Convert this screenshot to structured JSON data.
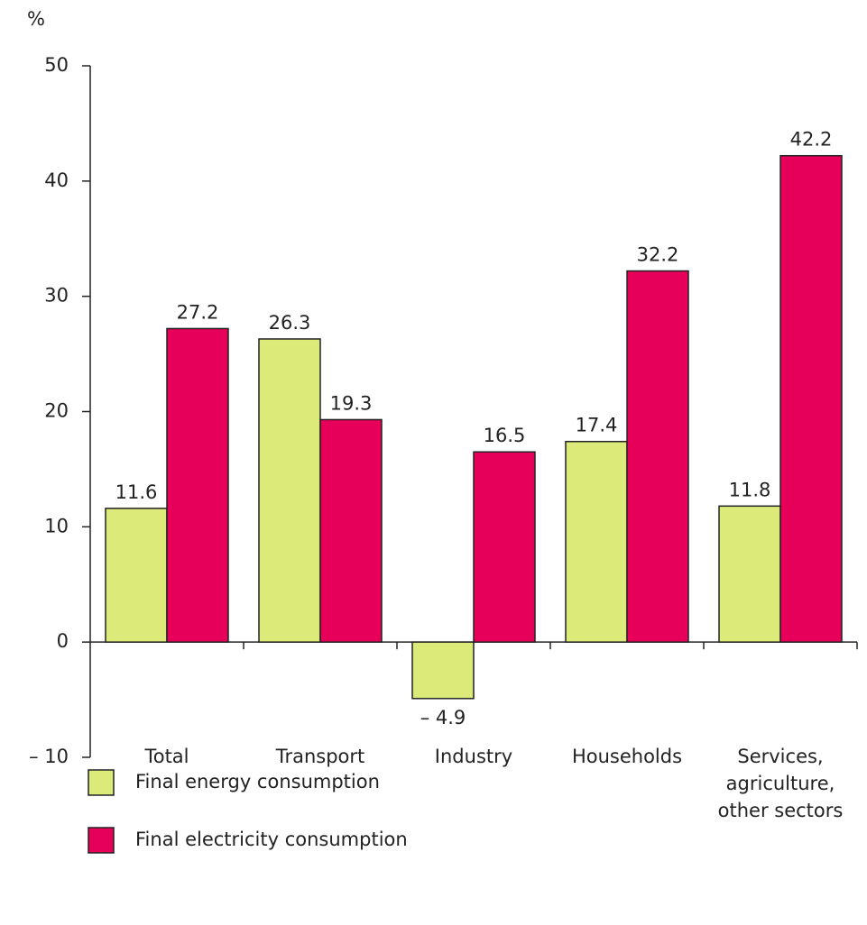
{
  "chart_data": {
    "type": "bar",
    "y_label": "%",
    "categories": [
      "Total",
      "Transport",
      "Industry",
      "Households",
      "Services,\nagriculture,\nother sectors"
    ],
    "series": [
      {
        "name": "Final energy consumption",
        "color": "#dcea7a",
        "values": [
          11.6,
          26.3,
          -4.9,
          17.4,
          11.8
        ],
        "value_labels": [
          "11.6",
          "26.3",
          "– 4.9",
          "17.4",
          "11.8"
        ]
      },
      {
        "name": "Final electricity consumption",
        "color": "#e6005a",
        "values": [
          27.2,
          19.3,
          16.5,
          32.2,
          42.2
        ]
      }
    ],
    "ylim": [
      -10,
      50
    ],
    "yticks": [
      {
        "value": -10,
        "label": "– 10"
      },
      0,
      10,
      20,
      30,
      40,
      50
    ],
    "grid": false
  }
}
